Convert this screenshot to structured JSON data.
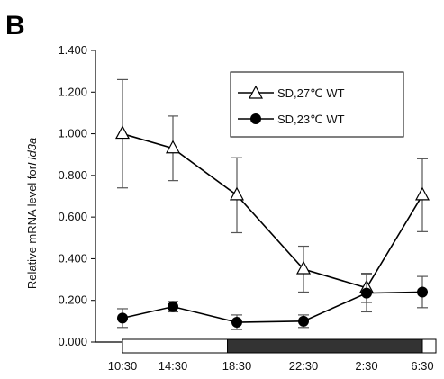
{
  "panel_label": "B",
  "chart_data": {
    "type": "line",
    "xlabel": "",
    "ylabel": "Relative mRNA level for",
    "ylabel_italic": "Hd3a",
    "ylim": [
      0,
      1.4
    ],
    "yticks": [
      "0.000",
      "0.200",
      "0.400",
      "0.600",
      "0.800",
      "1.000",
      "1.200",
      "1.400"
    ],
    "categories": [
      "10:30",
      "14:30",
      "18:30",
      "22:30",
      "2:30",
      "6:30"
    ],
    "series": [
      {
        "name": "SD,27℃ WT",
        "marker": "open-triangle",
        "values": [
          1.0,
          0.93,
          0.705,
          0.35,
          0.26,
          0.705
        ],
        "errors": [
          0.26,
          0.155,
          0.18,
          0.11,
          0.07,
          0.175
        ]
      },
      {
        "name": "SD,23℃ WT",
        "marker": "filled-circle",
        "values": [
          0.115,
          0.17,
          0.095,
          0.1,
          0.235,
          0.24
        ],
        "errors": [
          0.045,
          0.025,
          0.035,
          0.03,
          0.09,
          0.075
        ]
      }
    ],
    "light_bar": {
      "segments": [
        {
          "state": "light",
          "from": 10.5,
          "to": 17.5
        },
        {
          "state": "dark",
          "from": 17.5,
          "to": 30.5
        },
        {
          "state": "light",
          "from": 30.5,
          "to": 32
        }
      ]
    },
    "legend": "top-right",
    "grid": false
  }
}
